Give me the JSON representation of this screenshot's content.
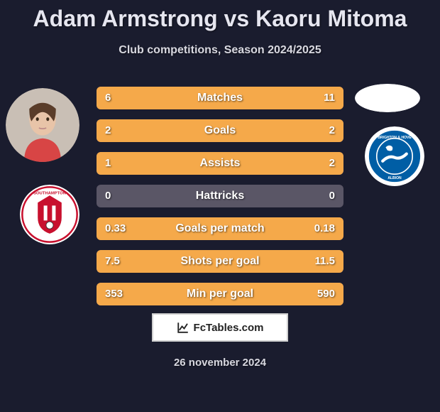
{
  "title": "Adam Armstrong vs Kaoru Mitoma",
  "subtitle": "Club competitions, Season 2024/2025",
  "brand": "FcTables.com",
  "date": "26 november 2024",
  "colors": {
    "background": "#1a1c2e",
    "title": "#e6e6f0",
    "subtitle": "#d8d8e0",
    "row_bg": "#5a5666",
    "fill_left": "#f5a94a",
    "fill_right": "#f5a94a",
    "row_text": "#ffffff",
    "avatar_bg": "#c9bfb5",
    "avatar_right_bg": "#ffffff",
    "club_left_ring": "#c8102e",
    "club_right_bg": "#005ea5",
    "club_right_ring": "#ffffff"
  },
  "rows": [
    {
      "label": "Matches",
      "left": "6",
      "right": "11",
      "lw": 35,
      "rw": 65
    },
    {
      "label": "Goals",
      "left": "2",
      "right": "2",
      "lw": 50,
      "rw": 50
    },
    {
      "label": "Assists",
      "left": "1",
      "right": "2",
      "lw": 33,
      "rw": 67
    },
    {
      "label": "Hattricks",
      "left": "0",
      "right": "0",
      "lw": 0,
      "rw": 0
    },
    {
      "label": "Goals per match",
      "left": "0.33",
      "right": "0.18",
      "lw": 65,
      "rw": 35
    },
    {
      "label": "Shots per goal",
      "left": "7.5",
      "right": "11.5",
      "lw": 40,
      "rw": 60
    },
    {
      "label": "Min per goal",
      "left": "353",
      "right": "590",
      "lw": 37,
      "rw": 63
    }
  ]
}
